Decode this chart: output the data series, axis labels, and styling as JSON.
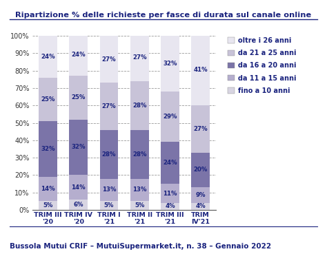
{
  "title": "Ripartizione % delle richieste per fasce di durata sul canale online",
  "footer": "Bussola Mutui CRIF – MutuiSupermarket.it, n. 38 – Gennaio 2022",
  "categories": [
    "TRIM III\n'20",
    "TRIM IV\n'20",
    "TRIM I\n'21",
    "TRIM II\n'21",
    "TRIM III\n'21",
    "TRIM\nIV'21"
  ],
  "series": {
    "fino a 10 anni": [
      5,
      6,
      5,
      5,
      4,
      4
    ],
    "da 11 a 15 anni": [
      14,
      14,
      13,
      13,
      11,
      9
    ],
    "da 16 a 20 anni": [
      32,
      32,
      28,
      28,
      24,
      20
    ],
    "da 21 a 25 anni": [
      25,
      25,
      27,
      28,
      29,
      27
    ],
    "oltre i 26 anni": [
      24,
      24,
      27,
      27,
      32,
      41
    ]
  },
  "colors": {
    "fino a 10 anni": "#d8d5e2",
    "da 11 a 15 anni": "#b5aece",
    "da 16 a 20 anni": "#7b74a8",
    "da 21 a 25 anni": "#c8c3d8",
    "oltre i 26 anni": "#e8e6f0"
  },
  "bg_color": "#ffffff",
  "title_color": "#1a237e",
  "footer_color": "#1a237e",
  "grid_color": "#999999",
  "bar_width": 0.6,
  "ylim": [
    0,
    100
  ],
  "yticks": [
    0,
    10,
    20,
    30,
    40,
    50,
    60,
    70,
    80,
    90,
    100
  ],
  "ytick_labels": [
    "0%",
    "10%",
    "20%",
    "30%",
    "40%",
    "50%",
    "60%",
    "70%",
    "80%",
    "90%",
    "100%"
  ]
}
